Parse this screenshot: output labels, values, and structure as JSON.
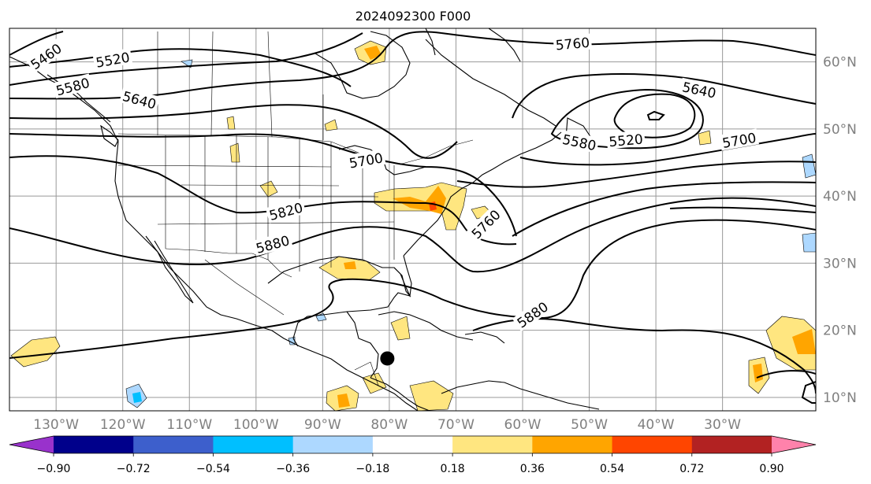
{
  "title": "2024092300 F000",
  "map": {
    "lon_range": [
      -137,
      -16
    ],
    "lat_range": [
      8,
      65
    ],
    "lon_ticks": [
      {
        "value": -130,
        "label": "130°W"
      },
      {
        "value": -120,
        "label": "120°W"
      },
      {
        "value": -110,
        "label": "110°W"
      },
      {
        "value": -100,
        "label": "100°W"
      },
      {
        "value": -90,
        "label": "90°W"
      },
      {
        "value": -80,
        "label": "80°W"
      },
      {
        "value": -70,
        "label": "70°W"
      },
      {
        "value": -60,
        "label": "60°W"
      },
      {
        "value": -50,
        "label": "50°W"
      },
      {
        "value": -40,
        "label": "40°W"
      },
      {
        "value": -30,
        "label": "30°W"
      }
    ],
    "lat_ticks": [
      {
        "value": 10,
        "label": "10°N"
      },
      {
        "value": 20,
        "label": "20°N"
      },
      {
        "value": 30,
        "label": "30°N"
      },
      {
        "value": 40,
        "label": "40°N"
      },
      {
        "value": 50,
        "label": "50°N"
      },
      {
        "value": 60,
        "label": "60°N"
      }
    ],
    "grid": true,
    "marker": {
      "lon": -80.3,
      "lat": 15.8,
      "color": "#000000"
    }
  },
  "contour_labels": [
    {
      "text": "5460",
      "lon": -131.5,
      "lat": 60.8,
      "angle": -35
    },
    {
      "text": "5520",
      "lon": -121.5,
      "lat": 60.3,
      "angle": -10
    },
    {
      "text": "5580",
      "lon": -127.5,
      "lat": 56.3,
      "angle": -15
    },
    {
      "text": "5640",
      "lon": -117.5,
      "lat": 54.3,
      "angle": 15
    },
    {
      "text": "5700",
      "lon": -83.5,
      "lat": 45.3,
      "angle": -10
    },
    {
      "text": "5820",
      "lon": -95.5,
      "lat": 37.7,
      "angle": -15
    },
    {
      "text": "5880",
      "lon": -97.5,
      "lat": 32.8,
      "angle": -15
    },
    {
      "text": "5760",
      "lon": -52.5,
      "lat": 62.7,
      "angle": -5
    },
    {
      "text": "5640",
      "lon": -33.5,
      "lat": 55.8,
      "angle": 12
    },
    {
      "text": "5520",
      "lon": -44.5,
      "lat": 48.3,
      "angle": -5
    },
    {
      "text": "5580",
      "lon": -51.5,
      "lat": 48.0,
      "angle": 12
    },
    {
      "text": "5700",
      "lon": -27.5,
      "lat": 48.3,
      "angle": -10
    },
    {
      "text": "5760",
      "lon": -65.5,
      "lat": 35.8,
      "angle": -45
    },
    {
      "text": "5880",
      "lon": -58.5,
      "lat": 22.3,
      "angle": -35
    }
  ],
  "colorbar": {
    "levels": [
      "−0.90",
      "−0.72",
      "−0.54",
      "−0.36",
      "−0.18",
      "0.18",
      "0.36",
      "0.54",
      "0.72",
      "0.90"
    ],
    "colors": [
      "#9932cc",
      "#00008b",
      "#3d5fcc",
      "#00bfff",
      "#add8ff",
      "#ffffff",
      "#ffe680",
      "#ffa500",
      "#ff4500",
      "#b22222",
      "#ff82ab"
    ]
  },
  "legend_colors": {
    "positive_light": "#ffe680",
    "positive_mid": "#ffa500",
    "negative_light": "#add8ff",
    "negative_mid": "#00bfff"
  }
}
